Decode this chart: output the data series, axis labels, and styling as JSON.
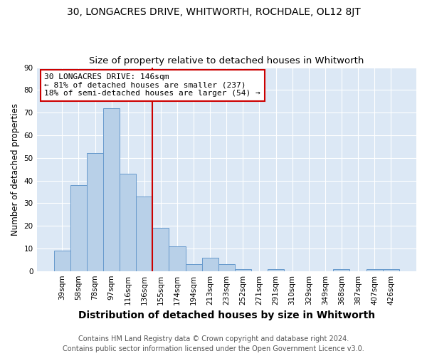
{
  "title": "30, LONGACRES DRIVE, WHITWORTH, ROCHDALE, OL12 8JT",
  "subtitle": "Size of property relative to detached houses in Whitworth",
  "xlabel": "Distribution of detached houses by size in Whitworth",
  "ylabel": "Number of detached properties",
  "categories": [
    "39sqm",
    "58sqm",
    "78sqm",
    "97sqm",
    "116sqm",
    "136sqm",
    "155sqm",
    "174sqm",
    "194sqm",
    "213sqm",
    "233sqm",
    "252sqm",
    "271sqm",
    "291sqm",
    "310sqm",
    "329sqm",
    "349sqm",
    "368sqm",
    "387sqm",
    "407sqm",
    "426sqm"
  ],
  "values": [
    9,
    38,
    52,
    72,
    43,
    33,
    19,
    11,
    3,
    6,
    3,
    1,
    0,
    1,
    0,
    0,
    0,
    1,
    0,
    1,
    1
  ],
  "bar_color": "#b8d0e8",
  "bar_edge_color": "#6699cc",
  "vline_x_index": 5.5,
  "vline_color": "#cc0000",
  "annotation_line1": "30 LONGACRES DRIVE: 146sqm",
  "annotation_line2": "← 81% of detached houses are smaller (237)",
  "annotation_line3": "18% of semi-detached houses are larger (54) →",
  "annotation_box_color": "#ffffff",
  "annotation_box_edge_color": "#cc0000",
  "ylim": [
    0,
    90
  ],
  "yticks": [
    0,
    10,
    20,
    30,
    40,
    50,
    60,
    70,
    80,
    90
  ],
  "bg_color": "#dce8f5",
  "footer_line1": "Contains HM Land Registry data © Crown copyright and database right 2024.",
  "footer_line2": "Contains public sector information licensed under the Open Government Licence v3.0.",
  "title_fontsize": 10,
  "subtitle_fontsize": 9.5,
  "xlabel_fontsize": 10,
  "ylabel_fontsize": 8.5,
  "tick_fontsize": 7.5,
  "annotation_fontsize": 8,
  "footer_fontsize": 7
}
